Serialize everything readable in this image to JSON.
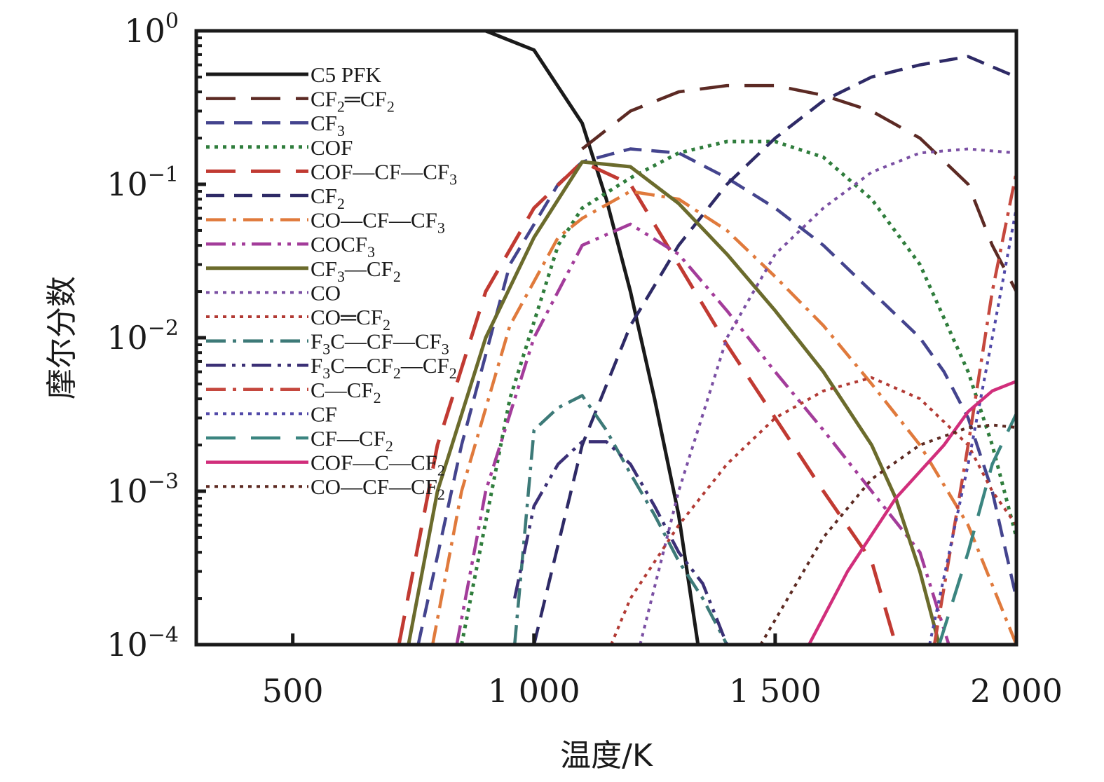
{
  "chart_data": {
    "type": "line",
    "title": "",
    "xlabel": "温度/K",
    "ylabel": "摩尔分数",
    "xlim": [
      300,
      2000
    ],
    "ylim": [
      0.0001,
      1
    ],
    "yscale": "log",
    "x_ticks": [
      500,
      1000,
      1500,
      2000
    ],
    "x_tick_labels": [
      "500",
      "1 000",
      "1 500",
      "2 000"
    ],
    "y_ticks": [
      0.0001,
      0.001,
      0.01,
      0.1,
      1
    ],
    "y_tick_labels": [
      {
        "base": "10",
        "exp": "−4"
      },
      {
        "base": "10",
        "exp": "−3"
      },
      {
        "base": "10",
        "exp": "−2"
      },
      {
        "base": "10",
        "exp": "−1"
      },
      {
        "base": "10",
        "exp": "0"
      }
    ],
    "grid": false,
    "legend_position": "top-left",
    "series": [
      {
        "name": "C5 PFK",
        "label": [
          {
            "t": "C5 PFK"
          }
        ],
        "color": "#1a1a1a",
        "dash": "solid",
        "width": 5,
        "points": [
          [
            300,
            1
          ],
          [
            900,
            1
          ],
          [
            1000,
            0.75
          ],
          [
            1100,
            0.25
          ],
          [
            1150,
            0.08
          ],
          [
            1200,
            0.02
          ],
          [
            1250,
            0.004
          ],
          [
            1300,
            0.0007
          ],
          [
            1340,
            0.0001
          ]
        ]
      },
      {
        "name": "CF2═CF2",
        "label": [
          {
            "t": "CF"
          },
          {
            "t": "2",
            "s": "sub"
          },
          {
            "t": "═CF"
          },
          {
            "t": "2",
            "s": "sub"
          }
        ],
        "color": "#5c2a24",
        "dash": "longdash",
        "width": 4.5,
        "points": [
          [
            1100,
            0.17
          ],
          [
            1200,
            0.3
          ],
          [
            1300,
            0.4
          ],
          [
            1400,
            0.44
          ],
          [
            1500,
            0.44
          ],
          [
            1600,
            0.38
          ],
          [
            1700,
            0.3
          ],
          [
            1800,
            0.2
          ],
          [
            1900,
            0.1
          ],
          [
            1950,
            0.04
          ],
          [
            2000,
            0.02
          ]
        ]
      },
      {
        "name": "CF3",
        "label": [
          {
            "t": "CF"
          },
          {
            "t": "3",
            "s": "sub"
          }
        ],
        "color": "#44448e",
        "dash": "dash",
        "width": 4.5,
        "points": [
          [
            760,
            0.0001
          ],
          [
            850,
            0.002
          ],
          [
            950,
            0.03
          ],
          [
            1050,
            0.1
          ],
          [
            1100,
            0.14
          ],
          [
            1200,
            0.17
          ],
          [
            1300,
            0.16
          ],
          [
            1400,
            0.11
          ],
          [
            1500,
            0.07
          ],
          [
            1600,
            0.04
          ],
          [
            1700,
            0.02
          ],
          [
            1800,
            0.01
          ],
          [
            1850,
            0.006
          ],
          [
            1900,
            0.003
          ],
          [
            1950,
            0.001
          ],
          [
            2000,
            0.0002
          ]
        ]
      },
      {
        "name": "COF",
        "label": [
          {
            "t": "COF"
          }
        ],
        "color": "#2f7d3c",
        "dash": "dot",
        "width": 5,
        "points": [
          [
            850,
            0.0001
          ],
          [
            950,
            0.004
          ],
          [
            1050,
            0.04
          ],
          [
            1100,
            0.07
          ],
          [
            1200,
            0.11
          ],
          [
            1300,
            0.16
          ],
          [
            1400,
            0.19
          ],
          [
            1500,
            0.19
          ],
          [
            1600,
            0.15
          ],
          [
            1700,
            0.08
          ],
          [
            1800,
            0.03
          ],
          [
            1900,
            0.006
          ],
          [
            1950,
            0.002
          ],
          [
            2000,
            0.0005
          ]
        ]
      },
      {
        "name": "COF—CF—CF3",
        "label": [
          {
            "t": "COF—CF—CF"
          },
          {
            "t": "3",
            "s": "sub"
          }
        ],
        "color": "#c13a32",
        "dash": "longdash",
        "width": 5,
        "points": [
          [
            720,
            0.0001
          ],
          [
            800,
            0.002
          ],
          [
            900,
            0.02
          ],
          [
            1000,
            0.07
          ],
          [
            1100,
            0.14
          ],
          [
            1200,
            0.1
          ],
          [
            1300,
            0.03
          ],
          [
            1400,
            0.009
          ],
          [
            1500,
            0.003
          ],
          [
            1600,
            0.001
          ],
          [
            1700,
            0.00035
          ],
          [
            1750,
            0.0001
          ]
        ]
      },
      {
        "name": "CF2",
        "label": [
          {
            "t": "CF"
          },
          {
            "t": "2",
            "s": "sub"
          }
        ],
        "color": "#2e2a66",
        "dash": "dash",
        "width": 4.5,
        "points": [
          [
            1000,
            0.0001
          ],
          [
            1100,
            0.002
          ],
          [
            1200,
            0.012
          ],
          [
            1300,
            0.04
          ],
          [
            1400,
            0.1
          ],
          [
            1500,
            0.2
          ],
          [
            1600,
            0.35
          ],
          [
            1700,
            0.5
          ],
          [
            1800,
            0.6
          ],
          [
            1900,
            0.68
          ],
          [
            2000,
            0.5
          ]
        ]
      },
      {
        "name": "CO—CF—CF3",
        "label": [
          {
            "t": "CO—CF—CF"
          },
          {
            "t": "3",
            "s": "sub"
          }
        ],
        "color": "#e07a3c",
        "dash": "dashdot",
        "width": 4.5,
        "points": [
          [
            790,
            0.0001
          ],
          [
            850,
            0.001
          ],
          [
            950,
            0.012
          ],
          [
            1050,
            0.045
          ],
          [
            1100,
            0.06
          ],
          [
            1200,
            0.09
          ],
          [
            1300,
            0.08
          ],
          [
            1400,
            0.05
          ],
          [
            1500,
            0.025
          ],
          [
            1600,
            0.012
          ],
          [
            1700,
            0.005
          ],
          [
            1800,
            0.002
          ],
          [
            1900,
            0.0006
          ],
          [
            2000,
            0.0001
          ]
        ]
      },
      {
        "name": "COCF3",
        "label": [
          {
            "t": "COCF"
          },
          {
            "t": "3",
            "s": "sub"
          }
        ],
        "color": "#a33c9a",
        "dash": "dashdotdot",
        "width": 4.5,
        "points": [
          [
            840,
            0.0001
          ],
          [
            900,
            0.001
          ],
          [
            1000,
            0.01
          ],
          [
            1100,
            0.04
          ],
          [
            1200,
            0.055
          ],
          [
            1300,
            0.035
          ],
          [
            1400,
            0.015
          ],
          [
            1500,
            0.006
          ],
          [
            1600,
            0.0025
          ],
          [
            1700,
            0.001
          ],
          [
            1800,
            0.0004
          ],
          [
            1860,
            0.0001
          ]
        ]
      },
      {
        "name": "CF3—CF2",
        "label": [
          {
            "t": "CF"
          },
          {
            "t": "3",
            "s": "sub"
          },
          {
            "t": "—CF"
          },
          {
            "t": "2",
            "s": "sub"
          }
        ],
        "color": "#6b6b2c",
        "dash": "solid",
        "width": 5,
        "points": [
          [
            740,
            0.0001
          ],
          [
            800,
            0.001
          ],
          [
            900,
            0.01
          ],
          [
            1000,
            0.045
          ],
          [
            1100,
            0.14
          ],
          [
            1200,
            0.13
          ],
          [
            1300,
            0.075
          ],
          [
            1400,
            0.035
          ],
          [
            1500,
            0.015
          ],
          [
            1600,
            0.006
          ],
          [
            1700,
            0.002
          ],
          [
            1750,
            0.0009
          ],
          [
            1800,
            0.0003
          ],
          [
            1840,
            0.0001
          ]
        ]
      },
      {
        "name": "CO",
        "label": [
          {
            "t": "CO"
          }
        ],
        "color": "#7a4fa3",
        "dash": "dot",
        "width": 4,
        "points": [
          [
            1220,
            0.0001
          ],
          [
            1300,
            0.001
          ],
          [
            1400,
            0.01
          ],
          [
            1500,
            0.035
          ],
          [
            1600,
            0.07
          ],
          [
            1700,
            0.12
          ],
          [
            1800,
            0.16
          ],
          [
            1900,
            0.17
          ],
          [
            2000,
            0.16
          ]
        ]
      },
      {
        "name": "CO═CF2",
        "label": [
          {
            "t": "CO═CF"
          },
          {
            "t": "2",
            "s": "sub"
          }
        ],
        "color": "#b23a34",
        "dash": "dot",
        "width": 4,
        "points": [
          [
            1160,
            0.0001
          ],
          [
            1200,
            0.0002
          ],
          [
            1300,
            0.0006
          ],
          [
            1400,
            0.0015
          ],
          [
            1500,
            0.003
          ],
          [
            1600,
            0.0045
          ],
          [
            1700,
            0.0055
          ],
          [
            1800,
            0.004
          ],
          [
            1900,
            0.002
          ],
          [
            1950,
            0.001
          ],
          [
            2000,
            0.0006
          ]
        ]
      },
      {
        "name": "F3C—CF—CF3",
        "label": [
          {
            "t": "F"
          },
          {
            "t": "3",
            "s": "sub"
          },
          {
            "t": "C—CF—CF"
          },
          {
            "t": "3",
            "s": "sub"
          }
        ],
        "color": "#3d7a78",
        "dash": "dashdot",
        "width": 4.5,
        "points": [
          [
            960,
            0.0001
          ],
          [
            1000,
            0.0025
          ],
          [
            1050,
            0.0035
          ],
          [
            1100,
            0.0042
          ],
          [
            1150,
            0.0025
          ],
          [
            1200,
            0.0013
          ],
          [
            1250,
            0.0007
          ],
          [
            1300,
            0.00035
          ],
          [
            1350,
            0.0002
          ],
          [
            1400,
            0.0001
          ]
        ]
      },
      {
        "name": "F3C—CF2—CF2",
        "label": [
          {
            "t": "F"
          },
          {
            "t": "3",
            "s": "sub"
          },
          {
            "t": "C—CF"
          },
          {
            "t": "2",
            "s": "sub"
          },
          {
            "t": "—CF"
          },
          {
            "t": "2",
            "s": "sub"
          }
        ],
        "color": "#3b3076",
        "dash": "dashdotdot",
        "width": 4.5,
        "points": [
          [
            960,
            0.0002
          ],
          [
            1000,
            0.0008
          ],
          [
            1050,
            0.0015
          ],
          [
            1100,
            0.0021
          ],
          [
            1150,
            0.0021
          ],
          [
            1200,
            0.0015
          ],
          [
            1250,
            0.0008
          ],
          [
            1300,
            0.0004
          ],
          [
            1350,
            0.00025
          ],
          [
            1400,
            0.0001
          ]
        ]
      },
      {
        "name": "C—CF2",
        "label": [
          {
            "t": "C—CF"
          },
          {
            "t": "2",
            "s": "sub"
          }
        ],
        "color": "#c5483e",
        "dash": "dashdot",
        "width": 4.5,
        "points": [
          [
            1830,
            0.0001
          ],
          [
            1900,
            0.002
          ],
          [
            1950,
            0.02
          ],
          [
            2000,
            0.12
          ]
        ]
      },
      {
        "name": "CF",
        "label": [
          {
            "t": "CF"
          }
        ],
        "color": "#5048a8",
        "dash": "dot",
        "width": 4,
        "points": [
          [
            1820,
            0.0001
          ],
          [
            1900,
            0.0015
          ],
          [
            1950,
            0.01
          ],
          [
            2000,
            0.07
          ]
        ]
      },
      {
        "name": "CF—CF2",
        "label": [
          {
            "t": "CF—CF"
          },
          {
            "t": "2",
            "s": "sub"
          }
        ],
        "color": "#3b8580",
        "dash": "longdash",
        "width": 4.5,
        "points": [
          [
            1840,
            0.0001
          ],
          [
            1900,
            0.0004
          ],
          [
            1950,
            0.0015
          ],
          [
            2000,
            0.0032
          ]
        ]
      },
      {
        "name": "COF—C—CF2",
        "label": [
          {
            "t": "COF—C—CF"
          },
          {
            "t": "2",
            "s": "sub"
          }
        ],
        "color": "#d12e7b",
        "dash": "solid",
        "width": 4.5,
        "points": [
          [
            1570,
            0.0001
          ],
          [
            1650,
            0.0003
          ],
          [
            1750,
            0.0009
          ],
          [
            1850,
            0.002
          ],
          [
            1900,
            0.0033
          ],
          [
            1950,
            0.0045
          ],
          [
            2000,
            0.0052
          ]
        ]
      },
      {
        "name": "CO—CF—CF2",
        "label": [
          {
            "t": "CO—CF—CF"
          },
          {
            "t": "2",
            "s": "sub"
          }
        ],
        "color": "#5d2a22",
        "dash": "dot",
        "width": 4,
        "points": [
          [
            1470,
            0.0001
          ],
          [
            1600,
            0.0005
          ],
          [
            1700,
            0.0012
          ],
          [
            1800,
            0.002
          ],
          [
            1900,
            0.0026
          ],
          [
            1950,
            0.0027
          ],
          [
            2000,
            0.0026
          ]
        ]
      }
    ]
  }
}
